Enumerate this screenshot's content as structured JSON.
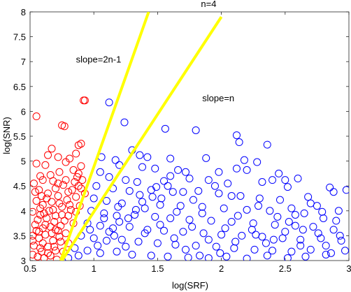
{
  "chart_data": {
    "type": "scatter",
    "title": "n=4",
    "xlabel": "log(SRF)",
    "ylabel": "log(SNR)",
    "xlim": [
      0.5,
      3
    ],
    "ylim": [
      3,
      8
    ],
    "xticks": [
      0.5,
      1,
      1.5,
      2,
      2.5,
      3
    ],
    "xtick_labels": [
      "0.5",
      "1",
      "1.5",
      "2",
      "2.5",
      "3"
    ],
    "yticks": [
      3,
      3.5,
      4,
      4.5,
      5,
      5.5,
      6,
      6.5,
      7,
      7.5,
      8
    ],
    "ytick_labels": [
      "3",
      "3.5",
      "4",
      "4.5",
      "5",
      "5.5",
      "6",
      "6.5",
      "7",
      "7.5",
      "8"
    ],
    "grid": false,
    "series": [
      {
        "color": "#ff0000",
        "marker": "open-circle",
        "points": [
          [
            0.55,
            5.9
          ],
          [
            0.75,
            5.72
          ],
          [
            0.77,
            5.7
          ],
          [
            0.92,
            6.22
          ],
          [
            0.93,
            6.22
          ],
          [
            0.9,
            5.35
          ],
          [
            0.88,
            5.32
          ],
          [
            0.86,
            5.15
          ],
          [
            0.67,
            5.25
          ],
          [
            0.64,
            5.12
          ],
          [
            0.72,
            5.08
          ],
          [
            0.81,
            5.05
          ],
          [
            0.55,
            4.95
          ],
          [
            0.62,
            4.92
          ],
          [
            0.58,
            4.7
          ],
          [
            0.73,
            4.78
          ],
          [
            0.84,
            4.82
          ],
          [
            0.88,
            4.75
          ],
          [
            0.6,
            4.62
          ],
          [
            0.68,
            4.6
          ],
          [
            0.78,
            4.62
          ],
          [
            0.85,
            4.58
          ],
          [
            0.9,
            4.45
          ],
          [
            0.53,
            4.55
          ],
          [
            0.57,
            4.42
          ],
          [
            0.64,
            4.35
          ],
          [
            0.72,
            4.3
          ],
          [
            0.8,
            4.38
          ],
          [
            0.86,
            4.28
          ],
          [
            0.55,
            4.2
          ],
          [
            0.6,
            4.12
          ],
          [
            0.67,
            4.18
          ],
          [
            0.75,
            4.08
          ],
          [
            0.82,
            4.02
          ],
          [
            0.52,
            3.98
          ],
          [
            0.58,
            3.92
          ],
          [
            0.63,
            3.85
          ],
          [
            0.7,
            3.9
          ],
          [
            0.77,
            3.8
          ],
          [
            0.84,
            3.75
          ],
          [
            0.54,
            3.72
          ],
          [
            0.6,
            3.65
          ],
          [
            0.66,
            3.68
          ],
          [
            0.72,
            3.6
          ],
          [
            0.78,
            3.55
          ],
          [
            0.52,
            3.5
          ],
          [
            0.57,
            3.45
          ],
          [
            0.62,
            3.52
          ],
          [
            0.68,
            3.4
          ],
          [
            0.74,
            3.38
          ],
          [
            0.8,
            3.35
          ],
          [
            0.53,
            3.3
          ],
          [
            0.58,
            3.25
          ],
          [
            0.64,
            3.28
          ],
          [
            0.7,
            3.2
          ],
          [
            0.76,
            3.18
          ],
          [
            0.52,
            3.12
          ],
          [
            0.56,
            3.08
          ],
          [
            0.61,
            3.05
          ],
          [
            0.66,
            3.1
          ],
          [
            0.71,
            3.02
          ],
          [
            0.55,
            3.6
          ],
          [
            0.62,
            3.72
          ],
          [
            0.69,
            3.78
          ],
          [
            0.75,
            3.92
          ],
          [
            0.81,
            4.12
          ],
          [
            0.88,
            4.5
          ],
          [
            0.91,
            4.62
          ],
          [
            0.58,
            4.05
          ],
          [
            0.65,
            4.0
          ],
          [
            0.73,
            4.15
          ],
          [
            0.79,
            4.22
          ],
          [
            0.87,
            4.68
          ],
          [
            0.6,
            3.35
          ],
          [
            0.67,
            3.55
          ],
          [
            0.74,
            3.7
          ],
          [
            0.8,
            3.9
          ],
          [
            0.56,
            3.82
          ],
          [
            0.63,
            4.25
          ],
          [
            0.7,
            4.45
          ],
          [
            0.76,
            4.52
          ],
          [
            0.83,
            4.42
          ],
          [
            0.9,
            4.9
          ],
          [
            0.78,
            4.98
          ],
          [
            0.66,
            4.72
          ],
          [
            0.59,
            4.3
          ],
          [
            0.54,
            4.38
          ],
          [
            0.69,
            3.28
          ],
          [
            0.64,
            3.15
          ],
          [
            0.59,
            3.18
          ],
          [
            0.73,
            3.48
          ],
          [
            0.61,
            3.95
          ],
          [
            0.68,
            4.02
          ],
          [
            0.86,
            3.98
          ],
          [
            0.89,
            4.1
          ],
          [
            0.93,
            4.35
          ],
          [
            0.72,
            4.55
          ],
          [
            0.57,
            3.58
          ],
          [
            0.52,
            3.4
          ],
          [
            0.7,
            3.62
          ]
        ]
      },
      {
        "color": "#0000ff",
        "marker": "open-circle",
        "points": [
          [
            1.12,
            6.18
          ],
          [
            1.24,
            5.78
          ],
          [
            1.56,
            5.65
          ],
          [
            1.8,
            5.62
          ],
          [
            2.12,
            5.52
          ],
          [
            2.36,
            5.33
          ],
          [
            2.14,
            5.38
          ],
          [
            1.06,
            5.08
          ],
          [
            1.17,
            5.02
          ],
          [
            1.3,
            5.22
          ],
          [
            1.36,
            5.12
          ],
          [
            1.42,
            5.08
          ],
          [
            1.6,
            5.05
          ],
          [
            1.88,
            5.06
          ],
          [
            2.18,
            5.02
          ],
          [
            2.28,
            4.98
          ],
          [
            1.2,
            4.92
          ],
          [
            1.38,
            4.88
          ],
          [
            1.48,
            4.85
          ],
          [
            1.66,
            4.82
          ],
          [
            1.72,
            4.78
          ],
          [
            1.98,
            4.78
          ],
          [
            2.12,
            4.85
          ],
          [
            2.4,
            4.62
          ],
          [
            2.2,
            4.82
          ],
          [
            2.45,
            4.75
          ],
          [
            2.5,
            4.62
          ],
          [
            1.05,
            4.78
          ],
          [
            1.12,
            4.68
          ],
          [
            1.25,
            4.62
          ],
          [
            1.34,
            4.58
          ],
          [
            1.55,
            4.6
          ],
          [
            1.75,
            4.65
          ],
          [
            1.9,
            4.62
          ],
          [
            2.05,
            4.55
          ],
          [
            2.32,
            4.58
          ],
          [
            2.6,
            4.65
          ],
          [
            2.52,
            4.48
          ],
          [
            2.85,
            4.47
          ],
          [
            2.98,
            4.42
          ],
          [
            2.88,
            4.38
          ],
          [
            1.02,
            4.5
          ],
          [
            1.15,
            4.45
          ],
          [
            1.28,
            4.4
          ],
          [
            1.45,
            4.42
          ],
          [
            1.62,
            4.38
          ],
          [
            1.82,
            4.4
          ],
          [
            1.98,
            4.35
          ],
          [
            2.15,
            4.3
          ],
          [
            2.3,
            4.25
          ],
          [
            2.46,
            4.22
          ],
          [
            2.68,
            4.28
          ],
          [
            2.75,
            4.1
          ],
          [
            2.92,
            4.0
          ],
          [
            1.0,
            4.25
          ],
          [
            1.1,
            4.2
          ],
          [
            1.22,
            4.15
          ],
          [
            1.38,
            4.18
          ],
          [
            1.52,
            4.12
          ],
          [
            1.68,
            4.1
          ],
          [
            1.85,
            4.08
          ],
          [
            2.02,
            4.05
          ],
          [
            2.2,
            4.02
          ],
          [
            2.38,
            4.0
          ],
          [
            2.55,
            4.05
          ],
          [
            2.65,
            3.95
          ],
          [
            2.8,
            3.85
          ],
          [
            0.98,
            4.0
          ],
          [
            1.08,
            3.95
          ],
          [
            1.18,
            3.9
          ],
          [
            1.32,
            3.92
          ],
          [
            1.48,
            3.88
          ],
          [
            1.6,
            3.85
          ],
          [
            1.75,
            3.82
          ],
          [
            1.92,
            3.8
          ],
          [
            2.08,
            3.78
          ],
          [
            2.25,
            3.75
          ],
          [
            2.42,
            3.72
          ],
          [
            2.58,
            3.7
          ],
          [
            2.72,
            3.68
          ],
          [
            2.88,
            3.62
          ],
          [
            0.95,
            3.75
          ],
          [
            1.05,
            3.7
          ],
          [
            1.15,
            3.65
          ],
          [
            1.28,
            3.68
          ],
          [
            1.42,
            3.62
          ],
          [
            1.55,
            3.6
          ],
          [
            1.7,
            3.58
          ],
          [
            1.86,
            3.55
          ],
          [
            2.0,
            3.52
          ],
          [
            2.16,
            3.5
          ],
          [
            2.32,
            3.48
          ],
          [
            2.48,
            3.45
          ],
          [
            2.62,
            3.42
          ],
          [
            2.78,
            3.45
          ],
          [
            2.94,
            3.4
          ],
          [
            0.9,
            3.5
          ],
          [
            1.0,
            3.45
          ],
          [
            1.1,
            3.4
          ],
          [
            1.22,
            3.42
          ],
          [
            1.35,
            3.38
          ],
          [
            1.5,
            3.35
          ],
          [
            1.64,
            3.32
          ],
          [
            1.8,
            3.3
          ],
          [
            1.96,
            3.28
          ],
          [
            2.1,
            3.25
          ],
          [
            2.26,
            3.22
          ],
          [
            2.4,
            3.2
          ],
          [
            2.55,
            3.18
          ],
          [
            2.7,
            3.22
          ],
          [
            2.86,
            3.15
          ],
          [
            0.85,
            3.25
          ],
          [
            0.95,
            3.2
          ],
          [
            1.05,
            3.15
          ],
          [
            1.18,
            3.18
          ],
          [
            1.3,
            3.12
          ],
          [
            1.45,
            3.1
          ],
          [
            1.58,
            3.08
          ],
          [
            1.74,
            3.06
          ],
          [
            1.9,
            3.05
          ],
          [
            2.04,
            3.08
          ],
          [
            2.2,
            3.04
          ],
          [
            2.36,
            3.1
          ],
          [
            2.52,
            3.05
          ],
          [
            2.66,
            3.08
          ],
          [
            2.82,
            3.12
          ],
          [
            2.97,
            3.2
          ],
          [
            0.8,
            3.05
          ],
          [
            0.88,
            3.1
          ],
          [
            1.25,
            3.28
          ],
          [
            1.4,
            3.55
          ],
          [
            1.52,
            3.72
          ],
          [
            1.65,
            3.98
          ],
          [
            1.78,
            4.22
          ],
          [
            1.95,
            4.5
          ],
          [
            2.08,
            4.3
          ],
          [
            1.12,
            3.58
          ],
          [
            1.2,
            3.78
          ],
          [
            1.33,
            4.02
          ],
          [
            1.46,
            4.28
          ],
          [
            1.58,
            4.5
          ],
          [
            1.7,
            4.38
          ],
          [
            1.85,
            3.95
          ],
          [
            2.24,
            3.62
          ],
          [
            2.44,
            3.88
          ],
          [
            2.62,
            3.3
          ],
          [
            2.76,
            3.55
          ],
          [
            2.9,
            3.8
          ],
          [
            1.03,
            3.3
          ],
          [
            1.16,
            3.5
          ],
          [
            1.27,
            3.85
          ],
          [
            1.4,
            4.05
          ],
          [
            1.53,
            4.25
          ],
          [
            1.63,
            3.45
          ],
          [
            1.77,
            3.68
          ],
          [
            1.9,
            3.42
          ],
          [
            2.03,
            3.65
          ],
          [
            2.13,
            3.9
          ],
          [
            2.29,
            4.1
          ],
          [
            2.35,
            3.35
          ],
          [
            2.5,
            3.58
          ],
          [
            2.58,
            3.92
          ],
          [
            2.7,
            4.15
          ],
          [
            2.82,
            3.3
          ],
          [
            0.97,
            3.62
          ],
          [
            1.08,
            3.85
          ],
          [
            1.19,
            4.08
          ],
          [
            1.36,
            4.32
          ],
          [
            1.49,
            4.48
          ],
          [
            1.6,
            4.7
          ],
          [
            1.72,
            3.22
          ],
          [
            1.83,
            3.1
          ],
          [
            1.99,
            3.15
          ],
          [
            2.11,
            3.38
          ],
          [
            2.27,
            3.52
          ],
          [
            2.41,
            3.42
          ],
          [
            2.53,
            3.78
          ],
          [
            2.64,
            3.62
          ],
          [
            2.79,
            3.98
          ],
          [
            2.93,
            3.5
          ]
        ]
      }
    ],
    "lines": [
      {
        "label": "slope=2n-1",
        "color": "#ffff00",
        "x": [
          0.74,
          1.43
        ],
        "y": [
          3.0,
          8.0
        ]
      },
      {
        "label": "slope=n",
        "color": "#ffff00",
        "x": [
          0.75,
          2.0
        ],
        "y": [
          3.0,
          7.9
        ]
      }
    ],
    "annotations": [
      {
        "text": "n=4",
        "x": 1.84,
        "y": 8.1
      },
      {
        "text": "slope=2n-1",
        "x": 0.86,
        "y": 6.98
      },
      {
        "text": "slope=n",
        "x": 1.85,
        "y": 6.2
      }
    ]
  }
}
